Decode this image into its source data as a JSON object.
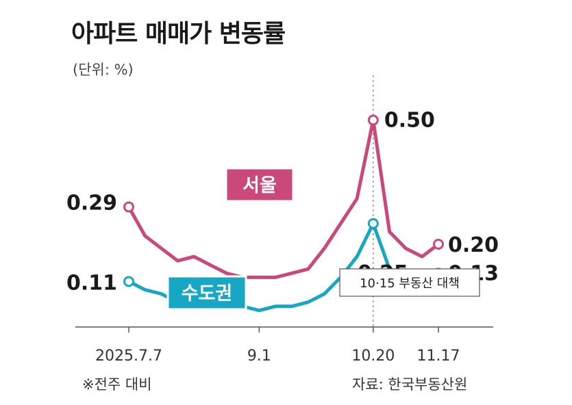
{
  "title": "아파트 매매가 변동률",
  "unit": "(단위: %)",
  "footnote": "※전주 대비",
  "source": "자료: 한국부동산원",
  "colors": {
    "seoul": "#c9497a",
    "metro": "#17a6c3",
    "axis": "#555555",
    "tag_border": "#ffffff"
  },
  "chart_data": {
    "type": "line",
    "title": "아파트 매매가 변동률",
    "ylabel": "(단위: %)",
    "xlabel": "",
    "x": [
      "2025.7.7",
      "7.14",
      "7.21",
      "7.28",
      "8.4",
      "8.11",
      "8.18",
      "8.25",
      "9.1",
      "9.8",
      "9.15",
      "9.22",
      "9.29",
      "10.6",
      "10.13",
      "10.20",
      "10.27",
      "11.3",
      "11.10",
      "11.17"
    ],
    "x_ticks_shown": [
      "2025.7.7",
      "9.1",
      "10.20",
      "11.17"
    ],
    "ylim": [
      0.0,
      0.55
    ],
    "series": [
      {
        "name": "서울",
        "values": [
          0.29,
          0.22,
          0.19,
          0.16,
          0.17,
          0.15,
          0.13,
          0.12,
          0.12,
          0.12,
          0.13,
          0.14,
          0.19,
          0.25,
          0.31,
          0.5,
          0.23,
          0.19,
          0.17,
          0.2
        ]
      },
      {
        "name": "수도권",
        "values": [
          0.11,
          0.09,
          0.08,
          0.06,
          0.07,
          0.06,
          0.05,
          0.05,
          0.04,
          0.05,
          0.05,
          0.06,
          0.08,
          0.12,
          0.17,
          0.25,
          0.14,
          0.13,
          0.11,
          0.13
        ]
      }
    ],
    "point_labels": [
      {
        "series": "서울",
        "index": 0,
        "text": "0.29"
      },
      {
        "series": "서울",
        "index": 15,
        "text": "0.50"
      },
      {
        "series": "서울",
        "index": 19,
        "text": "0.20"
      },
      {
        "series": "수도권",
        "index": 0,
        "text": "0.11"
      },
      {
        "series": "수도권",
        "index": 15,
        "text": "0.25"
      },
      {
        "series": "수도권",
        "index": 19,
        "text": "0.13"
      }
    ],
    "annotation": {
      "text": "10·15 부동산 대책",
      "at": "10.20"
    },
    "grid": false
  }
}
